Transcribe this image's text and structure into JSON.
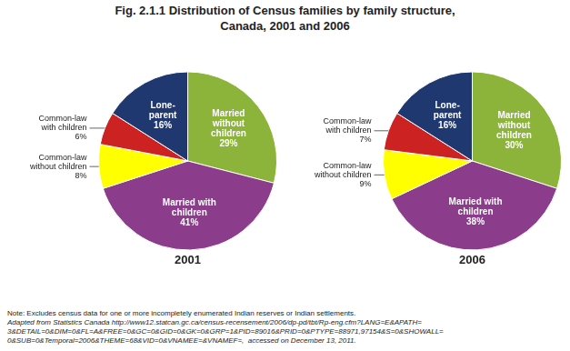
{
  "title": "Fig. 2.1.1  Distribution of Census families by family structure,\nCanada, 2001 and 2006",
  "annotations": [
    "Note: Excludes census data for one or more incompletely enumerated Indian reserves or Indian settlements.",
    "Adapted from Statistics Canada http://www12.statcan.gc.ca/census-recensement/2006/dp-pd/tbt/Rp-eng.cfm?LANG=E&APATH=\n3&DETAIL=0&DIM=0&FL=A&FREE=0&GC=0&GID=0&GK=0&GRP=1&PID=89016&PRID=0&PTYPE=88971,97154&S=0&SHOWALL=\n0&SUB=0&Temporal=2006&THEME=68&VID=0&VNAMEE=&VNAMEF=,  accessed on December 13, 2011."
  ],
  "chart_data": [
    {
      "type": "pie",
      "title": "2001",
      "categories": [
        "Married\nwithout\nchildren",
        "Married with\nchildren",
        "Common-law\nwithout children",
        "Common-law\nwith children",
        "Lone-\nparent"
      ],
      "values": [
        29,
        41,
        8,
        6,
        16
      ],
      "value_labels": [
        "29%",
        "41%",
        "8%",
        "6%",
        "16%"
      ],
      "colors": [
        "#8cb43a",
        "#8b3d8b",
        "#ffff00",
        "#cc2222",
        "#1f3870"
      ],
      "data_labels": true
    },
    {
      "type": "pie",
      "title": "2006",
      "categories": [
        "Married\nwithout\nchildren",
        "Married with\nchildren",
        "Common-law\nwithout children",
        "Common-law\nwith children",
        "Lone-\nparent"
      ],
      "values": [
        30,
        38,
        9,
        7,
        16
      ],
      "value_labels": [
        "30%",
        "38%",
        "9%",
        "7%",
        "16%"
      ],
      "colors": [
        "#8cb43a",
        "#8b3d8b",
        "#ffff00",
        "#cc2222",
        "#1f3870"
      ],
      "data_labels": true
    }
  ]
}
